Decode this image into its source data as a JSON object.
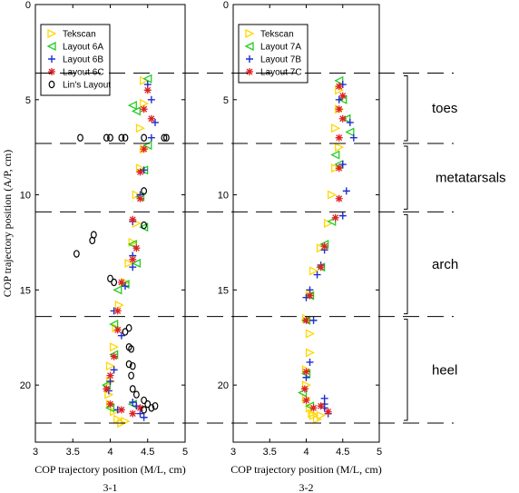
{
  "chart_data": [
    {
      "panel_label": "3-1",
      "type": "scatter",
      "xlabel": "COP trajectory position (M/L, cm)",
      "ylabel": "COP trajectory position (A/P, cm)",
      "xlim": [
        3,
        5
      ],
      "ylim": [
        0,
        23
      ],
      "y_inverted": true,
      "xticks": [
        "3",
        "3.5",
        "4",
        "4.5",
        "5"
      ],
      "yticks": [
        "0",
        "5",
        "10",
        "15",
        "20"
      ],
      "legend_position": "top-left",
      "series": [
        {
          "name": "Tekscan",
          "marker": "triangle-right",
          "color": "#ffd700",
          "points": [
            [
              4.45,
              4.0
            ],
            [
              4.45,
              5.2
            ],
            [
              4.4,
              6.5
            ],
            [
              4.45,
              7.6
            ],
            [
              4.4,
              8.6
            ],
            [
              4.35,
              10.0
            ],
            [
              4.35,
              11.5
            ],
            [
              4.3,
              12.5
            ],
            [
              4.25,
              13.6
            ],
            [
              4.2,
              14.6
            ],
            [
              4.12,
              15.8
            ],
            [
              4.08,
              17.0
            ],
            [
              4.05,
              18.0
            ],
            [
              4.0,
              19.0
            ],
            [
              4.0,
              19.8
            ],
            [
              3.98,
              20.5
            ],
            [
              4.0,
              21.0
            ],
            [
              4.05,
              21.4
            ],
            [
              4.1,
              21.8
            ],
            [
              4.15,
              22.0
            ],
            [
              4.2,
              21.9
            ]
          ]
        },
        {
          "name": "Layout 6A",
          "marker": "triangle-left",
          "color": "#22cc22",
          "points": [
            [
              4.5,
              3.9
            ],
            [
              4.35,
              5.6
            ],
            [
              4.3,
              5.3
            ],
            [
              4.5,
              7.4
            ],
            [
              4.45,
              8.7
            ],
            [
              4.4,
              10.1
            ],
            [
              4.45,
              11.7
            ],
            [
              4.3,
              12.6
            ],
            [
              4.35,
              13.6
            ],
            [
              4.2,
              14.7
            ],
            [
              4.1,
              15.0
            ],
            [
              4.05,
              16.8
            ],
            [
              4.05,
              18.4
            ],
            [
              3.95,
              20.0
            ],
            [
              4.0,
              21.2
            ],
            [
              4.3,
              21.0
            ]
          ]
        },
        {
          "name": "Layout 6B",
          "marker": "plus",
          "color": "#1f2fcc",
          "points": [
            [
              4.5,
              4.2
            ],
            [
              4.55,
              5.0
            ],
            [
              4.6,
              6.2
            ],
            [
              4.55,
              7.0
            ],
            [
              4.45,
              8.7
            ],
            [
              4.4,
              10.0
            ],
            [
              4.3,
              11.4
            ],
            [
              4.3,
              13.2
            ],
            [
              4.3,
              13.8
            ],
            [
              4.2,
              14.8
            ],
            [
              4.05,
              16.1
            ],
            [
              4.15,
              17.4
            ],
            [
              4.05,
              19.2
            ],
            [
              4.0,
              19.8
            ],
            [
              3.98,
              20.3
            ],
            [
              4.1,
              21.3
            ],
            [
              4.3,
              20.9
            ],
            [
              4.4,
              21.5
            ],
            [
              4.45,
              21.7
            ],
            [
              4.35,
              21.1
            ]
          ]
        },
        {
          "name": "Layout 6C",
          "marker": "star",
          "color": "#dd2222",
          "points": [
            [
              4.5,
              4.5
            ],
            [
              4.45,
              5.5
            ],
            [
              4.55,
              6.0
            ],
            [
              4.45,
              7.6
            ],
            [
              4.4,
              8.8
            ],
            [
              4.4,
              10.2
            ],
            [
              4.3,
              11.3
            ],
            [
              4.35,
              12.8
            ],
            [
              4.3,
              13.4
            ],
            [
              4.15,
              14.6
            ],
            [
              4.1,
              16.1
            ],
            [
              4.1,
              17.1
            ],
            [
              4.05,
              18.5
            ],
            [
              4.0,
              19.5
            ],
            [
              3.95,
              20.2
            ],
            [
              4.0,
              21.0
            ],
            [
              4.15,
              21.3
            ],
            [
              4.3,
              21.5
            ],
            [
              4.4,
              21.2
            ]
          ]
        },
        {
          "name": "Lin's Layout",
          "marker": "circle",
          "color": "#000000",
          "points": [
            [
              4.75,
              7.0
            ],
            [
              4.72,
              7.0
            ],
            [
              4.45,
              7.0
            ],
            [
              4.2,
              7.0
            ],
            [
              4.15,
              7.0
            ],
            [
              4.0,
              7.0
            ],
            [
              3.95,
              7.0
            ],
            [
              3.6,
              7.0
            ],
            [
              4.45,
              9.8
            ],
            [
              4.45,
              11.6
            ],
            [
              3.78,
              12.1
            ],
            [
              3.76,
              12.4
            ],
            [
              3.55,
              13.1
            ],
            [
              4.0,
              14.4
            ],
            [
              4.05,
              14.6
            ],
            [
              4.25,
              17.0
            ],
            [
              4.2,
              17.2
            ],
            [
              4.25,
              18.0
            ],
            [
              4.28,
              18.1
            ],
            [
              4.25,
              18.9
            ],
            [
              4.3,
              19.0
            ],
            [
              4.28,
              19.5
            ],
            [
              4.3,
              20.2
            ],
            [
              4.35,
              20.5
            ],
            [
              4.45,
              20.8
            ],
            [
              4.5,
              21.0
            ],
            [
              4.45,
              21.3
            ],
            [
              4.55,
              21.2
            ],
            [
              4.6,
              21.1
            ]
          ]
        }
      ]
    },
    {
      "panel_label": "3-2",
      "type": "scatter",
      "xlabel": "COP trajectory position (M/L, cm)",
      "ylabel": "",
      "xlim": [
        3,
        5
      ],
      "ylim": [
        0,
        23
      ],
      "y_inverted": true,
      "xticks": [
        "3",
        "3.5",
        "4",
        "4.5",
        "5"
      ],
      "yticks": [
        "0",
        "5",
        "10",
        "15",
        "20"
      ],
      "legend_position": "top-left",
      "series": [
        {
          "name": "Tekscan",
          "marker": "triangle-right",
          "color": "#ffd700",
          "points": [
            [
              4.45,
              4.5
            ],
            [
              4.45,
              5.5
            ],
            [
              4.4,
              6.5
            ],
            [
              4.45,
              7.5
            ],
            [
              4.4,
              8.6
            ],
            [
              4.35,
              10.0
            ],
            [
              4.3,
              11.5
            ],
            [
              4.2,
              12.8
            ],
            [
              4.1,
              14.0
            ],
            [
              4.05,
              15.2
            ],
            [
              4.0,
              16.5
            ],
            [
              4.05,
              17.3
            ],
            [
              4.05,
              18.3
            ],
            [
              4.0,
              19.2
            ],
            [
              4.0,
              20.0
            ],
            [
              4.0,
              20.7
            ],
            [
              4.05,
              21.2
            ],
            [
              4.1,
              21.6
            ],
            [
              4.15,
              21.8
            ],
            [
              4.2,
              21.6
            ],
            [
              4.08,
              21.5
            ]
          ]
        },
        {
          "name": "Layout 7A",
          "marker": "triangle-left",
          "color": "#22cc22",
          "points": [
            [
              4.45,
              4.0
            ],
            [
              4.5,
              5.0
            ],
            [
              4.55,
              6.0
            ],
            [
              4.6,
              6.7
            ],
            [
              4.4,
              7.9
            ],
            [
              4.45,
              8.4
            ],
            [
              4.35,
              11.4
            ],
            [
              4.25,
              12.6
            ],
            [
              4.2,
              13.8
            ],
            [
              4.05,
              15.3
            ],
            [
              4.0,
              16.6
            ],
            [
              4.0,
              19.4
            ],
            [
              3.95,
              20.4
            ],
            [
              4.05,
              21.1
            ]
          ]
        },
        {
          "name": "Layout 7B",
          "marker": "plus",
          "color": "#1f2fcc",
          "points": [
            [
              4.5,
              4.2
            ],
            [
              4.45,
              5.0
            ],
            [
              4.6,
              6.2
            ],
            [
              4.65,
              7.0
            ],
            [
              4.5,
              8.4
            ],
            [
              4.55,
              9.8
            ],
            [
              4.5,
              11.1
            ],
            [
              4.25,
              12.9
            ],
            [
              4.2,
              13.7
            ],
            [
              4.15,
              14.2
            ],
            [
              4.05,
              15.0
            ],
            [
              4.0,
              15.4
            ],
            [
              4.1,
              16.6
            ],
            [
              4.05,
              18.8
            ],
            [
              4.0,
              19.6
            ],
            [
              4.25,
              20.7
            ],
            [
              4.25,
              21.0
            ],
            [
              4.3,
              21.5
            ],
            [
              4.25,
              21.2
            ]
          ]
        },
        {
          "name": "Layout 7C",
          "marker": "star",
          "color": "#dd2222",
          "points": [
            [
              4.45,
              4.3
            ],
            [
              4.5,
              4.8
            ],
            [
              4.45,
              5.5
            ],
            [
              4.5,
              6.0
            ],
            [
              4.45,
              7.0
            ],
            [
              4.45,
              8.6
            ],
            [
              4.45,
              10.2
            ],
            [
              4.4,
              11.2
            ],
            [
              4.25,
              12.7
            ],
            [
              4.2,
              13.8
            ],
            [
              4.05,
              15.3
            ],
            [
              4.0,
              16.6
            ],
            [
              4.0,
              19.3
            ],
            [
              3.98,
              20.2
            ],
            [
              4.0,
              20.8
            ],
            [
              4.1,
              21.2
            ],
            [
              4.2,
              21.1
            ],
            [
              4.3,
              21.4
            ]
          ]
        }
      ]
    }
  ],
  "regions": [
    {
      "label": "toes",
      "y_from": 3.6,
      "y_to": 7.3
    },
    {
      "label": "metatarsals",
      "y_from": 7.3,
      "y_to": 10.9
    },
    {
      "label": "arch",
      "y_from": 10.9,
      "y_to": 16.4
    },
    {
      "label": "heel",
      "y_from": 16.4,
      "y_to": 22.0
    }
  ],
  "divider_lines_y": [
    3.6,
    7.3,
    10.9,
    16.4,
    22.0
  ]
}
